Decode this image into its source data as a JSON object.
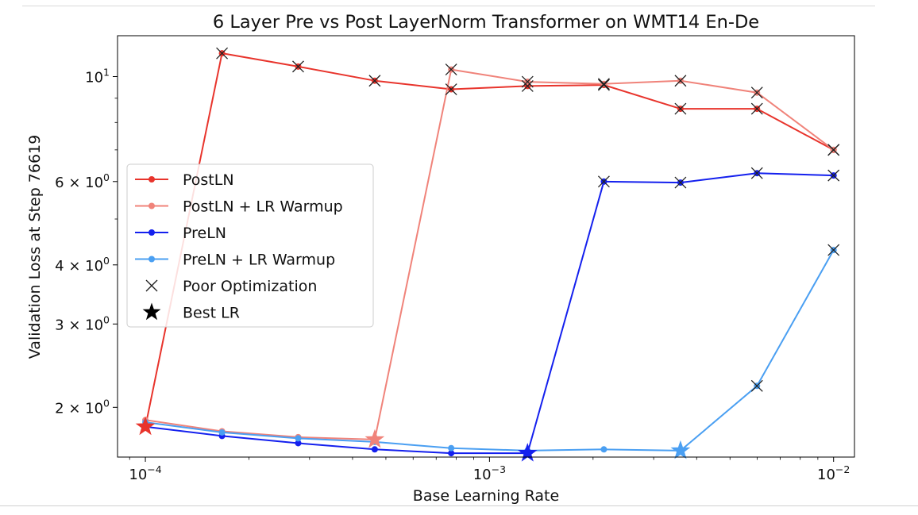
{
  "chart_data": {
    "type": "line",
    "title": "6 Layer Pre vs Post LayerNorm Transformer on WMT14 En-De",
    "xlabel": "Base Learning Rate",
    "ylabel": "Validation Loss at Step 76619",
    "xscale": "log",
    "yscale": "log",
    "xlim": [
      8.3e-05,
      0.0115
    ],
    "ylim": [
      1.57,
      12.2
    ],
    "x_ticks": [
      {
        "value": 0.0001,
        "base": "10",
        "exp": "−4"
      },
      {
        "value": 0.001,
        "base": "10",
        "exp": "−3"
      },
      {
        "value": 0.01,
        "base": "10",
        "exp": "−2"
      }
    ],
    "y_ticks": [
      {
        "value": 10,
        "mant": "",
        "base": "10",
        "exp": "1"
      },
      {
        "value": 6,
        "mant": "6 × ",
        "base": "10",
        "exp": "0"
      },
      {
        "value": 4,
        "mant": "4 × ",
        "base": "10",
        "exp": "0"
      },
      {
        "value": 3,
        "mant": "3 × ",
        "base": "10",
        "exp": "0"
      },
      {
        "value": 2,
        "mant": "2 × ",
        "base": "10",
        "exp": "0"
      }
    ],
    "x": [
      0.0001,
      0.000167,
      0.000278,
      0.000464,
      0.000774,
      0.00129,
      0.00215,
      0.00359,
      0.00599,
      0.01
    ],
    "series": [
      {
        "name": "PostLN",
        "color": "#e8342c",
        "values": [
          1.82,
          11.2,
          10.5,
          9.8,
          9.4,
          9.55,
          9.6,
          8.55,
          8.55,
          7.0
        ],
        "poor": [
          false,
          true,
          true,
          true,
          true,
          true,
          true,
          true,
          true,
          true
        ],
        "best_index": 0
      },
      {
        "name": "PostLN + LR Warmup",
        "color": "#f0837a",
        "values": [
          1.88,
          1.78,
          1.73,
          1.71,
          10.35,
          9.75,
          9.65,
          9.8,
          9.25,
          7.0
        ],
        "poor": [
          false,
          false,
          false,
          false,
          true,
          true,
          true,
          true,
          true,
          true
        ],
        "best_index": 3
      },
      {
        "name": "PreLN",
        "color": "#1420ee",
        "values": [
          1.82,
          1.74,
          1.68,
          1.63,
          1.6,
          1.6,
          6.0,
          5.97,
          6.25,
          6.18
        ],
        "poor": [
          false,
          false,
          false,
          false,
          false,
          false,
          true,
          true,
          true,
          true
        ],
        "best_index": 5
      },
      {
        "name": "PreLN + LR Warmup",
        "color": "#4a9ff2",
        "values": [
          1.86,
          1.77,
          1.72,
          1.69,
          1.64,
          1.62,
          1.63,
          1.62,
          2.22,
          4.3
        ],
        "poor": [
          false,
          false,
          false,
          false,
          false,
          false,
          false,
          false,
          true,
          true
        ],
        "best_index": 7
      }
    ],
    "legend": {
      "placement": "center-left",
      "extra": [
        {
          "label": "Poor Optimization",
          "marker": "x"
        },
        {
          "label": "Best LR",
          "marker": "star"
        }
      ]
    },
    "grid": false
  }
}
